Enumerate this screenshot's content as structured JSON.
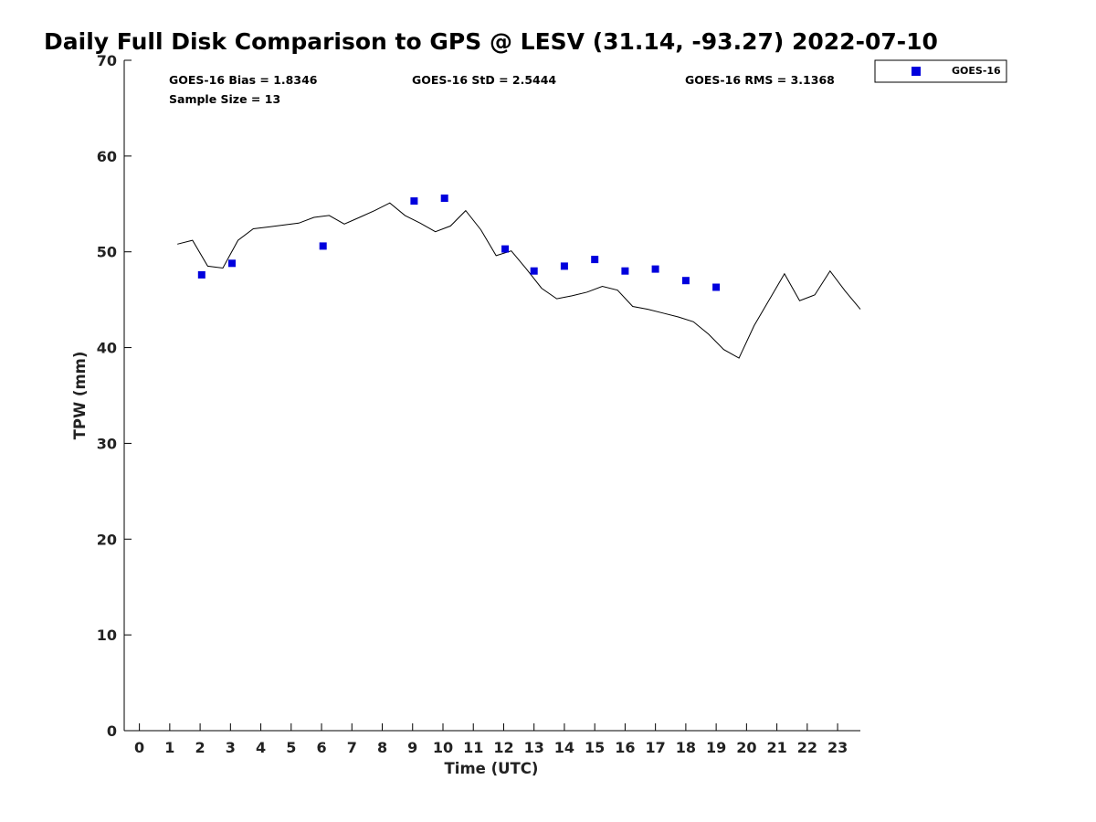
{
  "chart_data": {
    "type": "scatter",
    "title": "Daily Full Disk Comparison to GPS @ LESV (31.14, -93.27) 2022-07-10",
    "xlabel": "Time (UTC)",
    "ylabel": "TPW (mm)",
    "xlim": [
      -0.5,
      23.75
    ],
    "ylim": [
      0,
      70
    ],
    "xticks": [
      0,
      1,
      2,
      3,
      4,
      5,
      6,
      7,
      8,
      9,
      10,
      11,
      12,
      13,
      14,
      15,
      16,
      17,
      18,
      19,
      20,
      21,
      22,
      23
    ],
    "yticks": [
      0,
      10,
      20,
      30,
      40,
      50,
      60,
      70
    ],
    "stats": {
      "bias": "GOES-16 Bias = 1.8346",
      "std": "GOES-16 StD = 2.5444",
      "rms": "GOES-16 RMS = 3.1368",
      "sample": "Sample Size = 13"
    },
    "legend": {
      "position": "top-right outside",
      "entries": [
        "GOES-16"
      ]
    },
    "series": [
      {
        "name": "GOES-16",
        "kind": "scatter",
        "color": "#0000dd",
        "x": [
          2.05,
          3.05,
          6.05,
          9.05,
          10.05,
          12.05,
          13.0,
          14.0,
          15.0,
          16.0,
          17.0,
          18.0,
          19.0
        ],
        "y": [
          47.6,
          48.8,
          50.6,
          55.3,
          55.6,
          50.3,
          48.0,
          48.5,
          49.2,
          48.0,
          48.2,
          47.0,
          46.3
        ]
      },
      {
        "kind": "line",
        "color": "#000000",
        "x": [
          1.25,
          1.75,
          2.25,
          2.75,
          3.25,
          3.75,
          4.25,
          4.75,
          5.25,
          5.75,
          6.25,
          6.75,
          7.25,
          7.75,
          8.25,
          8.75,
          9.25,
          9.75,
          10.25,
          10.75,
          11.25,
          11.75,
          12.25,
          12.75,
          13.25,
          13.75,
          14.25,
          14.75,
          15.25,
          15.75,
          16.25,
          16.75,
          17.25,
          17.75,
          18.25,
          18.75,
          19.25,
          19.75,
          20.25,
          20.75,
          21.25,
          21.75,
          22.25,
          22.75,
          23.25,
          23.75
        ],
        "y": [
          50.8,
          51.2,
          48.5,
          48.3,
          51.2,
          52.4,
          52.6,
          52.8,
          53.0,
          53.6,
          53.8,
          52.9,
          53.6,
          54.3,
          55.1,
          53.8,
          53.0,
          52.1,
          52.7,
          54.3,
          52.3,
          49.6,
          50.1,
          48.2,
          46.2,
          45.1,
          45.4,
          45.8,
          46.4,
          46.0,
          44.3,
          44.0,
          43.6,
          43.2,
          42.7,
          41.4,
          39.8,
          38.9,
          42.3,
          45.0,
          47.7,
          44.9,
          45.5,
          48.0,
          45.9,
          44.0
        ]
      }
    ]
  }
}
